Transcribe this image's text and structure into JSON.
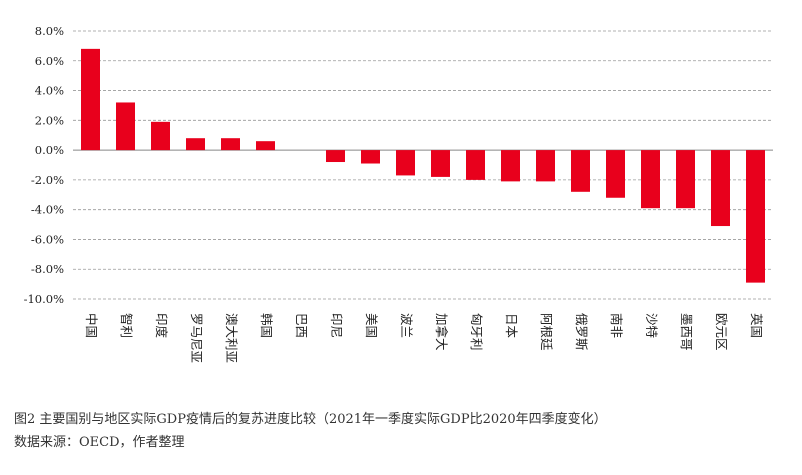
{
  "caption": {
    "title": "图2 主要国别与地区实际GDP疫情后的复苏进度比较（2021年一季度实际GDP比2020年四季度变化）",
    "source": "数据来源：OECD，作者整理"
  },
  "chart_data": {
    "type": "bar",
    "categories": [
      "中国",
      "智利",
      "印度",
      "罗马尼亚",
      "澳大利亚",
      "韩国",
      "巴西",
      "印尼",
      "美国",
      "波兰",
      "加拿大",
      "匈牙利",
      "日本",
      "阿根廷",
      "俄罗斯",
      "南非",
      "沙特",
      "墨西哥",
      "欧元区",
      "英国"
    ],
    "values": [
      6.8,
      3.2,
      1.9,
      0.8,
      0.8,
      0.6,
      0.0,
      -0.8,
      -0.9,
      -1.7,
      -1.8,
      -2.0,
      -2.1,
      -2.1,
      -2.8,
      -3.2,
      -3.9,
      -3.9,
      -5.1,
      -8.9
    ],
    "yticks": [
      "8.0%",
      "6.0%",
      "4.0%",
      "2.0%",
      "0.0%",
      "-2.0%",
      "-4.0%",
      "-6.0%",
      "-8.0%",
      "-10.0%"
    ],
    "ylim": [
      -10,
      8
    ],
    "grid": true,
    "bar_color": "#e8001c",
    "grid_color": "#999999",
    "axis_color": "#888888"
  }
}
